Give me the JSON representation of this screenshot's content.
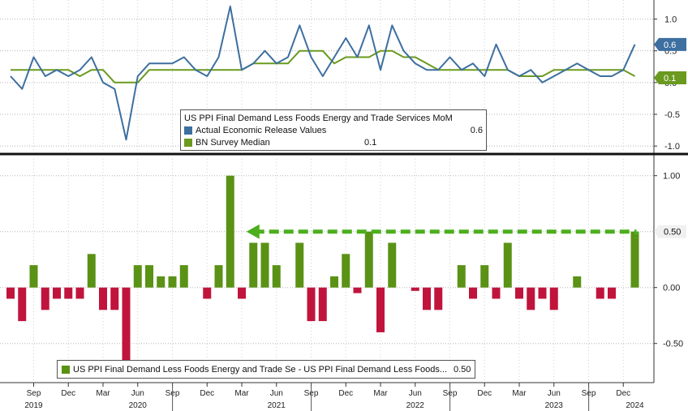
{
  "chart_data": [
    {
      "type": "line",
      "title": "",
      "ylim": [
        -1.1,
        1.3
      ],
      "y_ticks": [
        "1.0",
        "0.5",
        "0.0",
        "-0.5",
        "-1.0"
      ],
      "y_tick_values": [
        1.0,
        0.5,
        0.0,
        -0.5,
        -1.0
      ],
      "x_start": "2019-07",
      "legend": {
        "title": "US PPI Final Demand Less Foods Energy and Trade Services MoM",
        "placement": "center"
      },
      "series": [
        {
          "name": "Actual Economic Release Values",
          "legend_value": "0.6",
          "color": "#3d6fa0",
          "values": [
            0.1,
            -0.1,
            0.4,
            0.1,
            0.2,
            0.1,
            0.2,
            0.4,
            0.0,
            -0.1,
            -0.9,
            0.1,
            0.3,
            0.3,
            0.3,
            0.4,
            0.2,
            0.1,
            0.4,
            1.2,
            0.2,
            0.3,
            0.5,
            0.3,
            0.4,
            0.9,
            0.4,
            0.1,
            0.4,
            0.7,
            0.4,
            0.9,
            0.2,
            0.9,
            0.5,
            0.3,
            0.2,
            0.2,
            0.4,
            0.2,
            0.3,
            0.1,
            0.6,
            0.2,
            0.1,
            0.2,
            0.0,
            0.1,
            0.2,
            0.3,
            0.2,
            0.1,
            0.1,
            0.2,
            0.6
          ]
        },
        {
          "name": "BN Survey Median",
          "legend_value": "0.1",
          "color": "#6a9a1f",
          "values": [
            0.2,
            0.2,
            0.2,
            0.2,
            0.2,
            0.2,
            0.1,
            0.2,
            0.2,
            0.0,
            0.0,
            0.0,
            0.2,
            0.2,
            0.2,
            0.2,
            0.2,
            0.2,
            0.2,
            0.2,
            0.2,
            0.3,
            0.3,
            0.3,
            0.3,
            0.5,
            0.5,
            0.5,
            0.3,
            0.4,
            0.4,
            0.4,
            0.5,
            0.5,
            0.4,
            0.4,
            0.3,
            0.2,
            0.2,
            0.2,
            0.2,
            0.2,
            0.2,
            0.2,
            0.1,
            0.1,
            0.1,
            0.2,
            0.2,
            0.2,
            0.2,
            0.2,
            0.2,
            0.2,
            0.1
          ]
        }
      ],
      "end_labels": [
        "0.6",
        "0.1"
      ]
    },
    {
      "type": "bar",
      "ylim": [
        -0.85,
        1.15
      ],
      "y_ticks": [
        "1.00",
        "0.50",
        "0.00",
        "-0.50"
      ],
      "y_tick_values": [
        1.0,
        0.5,
        0.0,
        -0.5
      ],
      "x_start": "2019-07",
      "positive_color": "#5a9216",
      "negative_color": "#c0143c",
      "arrow_color": "#4caf1c",
      "legend": {
        "label": "US PPI Final Demand Less Foods Energy and Trade Se - US PPI Final Demand Less Foods...",
        "value": "0.50",
        "placement": "bottom-left"
      },
      "series": [
        {
          "name": "US PPI Final Demand Less Foods Energy and Trade Se - US PPI Final Demand Less Foods...",
          "values": [
            -0.1,
            -0.3,
            0.2,
            -0.2,
            -0.1,
            -0.1,
            -0.1,
            0.3,
            -0.2,
            -0.2,
            -0.75,
            0.2,
            0.2,
            0.1,
            0.1,
            0.2,
            0.0,
            -0.1,
            0.2,
            1.0,
            -0.1,
            0.4,
            0.4,
            0.2,
            0.0,
            0.4,
            -0.3,
            -0.3,
            0.1,
            0.3,
            -0.05,
            0.5,
            -0.4,
            0.4,
            0.0,
            -0.03,
            -0.2,
            -0.2,
            0.0,
            0.2,
            -0.1,
            0.2,
            -0.1,
            0.4,
            -0.1,
            -0.2,
            -0.1,
            -0.2,
            0.0,
            0.1,
            0.0,
            -0.1,
            -0.1,
            0.0,
            0.5
          ]
        }
      ],
      "end_label": "0.50"
    }
  ],
  "x_axis": {
    "ticks": [
      {
        "label": "Sep",
        "month_index": 2
      },
      {
        "label": "Dec",
        "month_index": 5
      },
      {
        "label": "Mar",
        "month_index": 8
      },
      {
        "label": "Jun",
        "month_index": 11
      },
      {
        "label": "Sep",
        "month_index": 14
      },
      {
        "label": "Dec",
        "month_index": 17
      },
      {
        "label": "Mar",
        "month_index": 20
      },
      {
        "label": "Jun",
        "month_index": 23
      },
      {
        "label": "Sep",
        "month_index": 26
      },
      {
        "label": "Dec",
        "month_index": 29
      },
      {
        "label": "Mar",
        "month_index": 32
      },
      {
        "label": "Jun",
        "month_index": 35
      },
      {
        "label": "Sep",
        "month_index": 38
      },
      {
        "label": "Dec",
        "month_index": 41
      },
      {
        "label": "Mar",
        "month_index": 44
      },
      {
        "label": "Jun",
        "month_index": 47
      },
      {
        "label": "Sep",
        "month_index": 50
      },
      {
        "label": "Dec",
        "month_index": 53
      }
    ],
    "years": [
      {
        "label": "2019",
        "month_index": 2
      },
      {
        "label": "2020",
        "month_index": 11
      },
      {
        "label": "2021",
        "month_index": 23
      },
      {
        "label": "2022",
        "month_index": 35
      },
      {
        "label": "2023",
        "month_index": 47
      },
      {
        "label": "2024",
        "month_index": 54
      }
    ]
  }
}
